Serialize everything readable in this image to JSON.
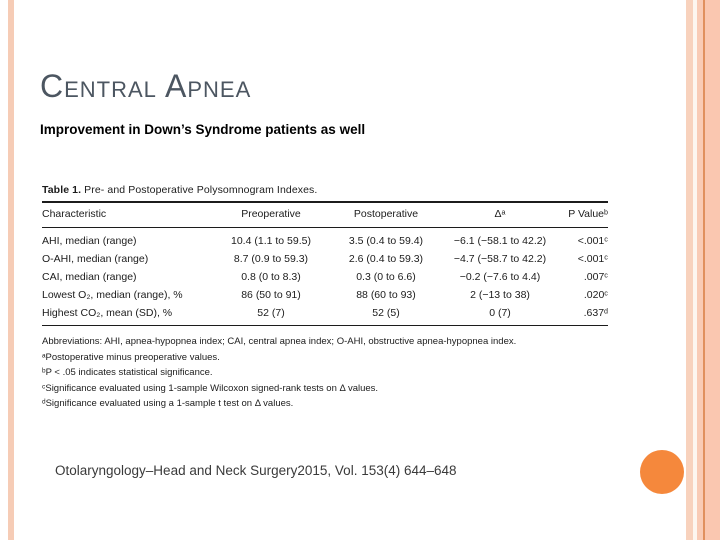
{
  "slide": {
    "title": "Central Apnea",
    "subtitle": "Improvement in Down’s Syndrome patients as well",
    "citation": "Otolaryngology–Head and Neck Surgery2015, Vol. 153(4) 644–648"
  },
  "table": {
    "caption_bold": "Table 1.",
    "caption_rest": " Pre- and Postoperative Polysomnogram Indexes.",
    "headers": [
      "Characteristic",
      "Preoperative",
      "Postoperative",
      "Δᵃ",
      "P Valueᵇ"
    ],
    "rows": [
      {
        "cells": [
          "AHI, median (range)",
          "10.4 (1.1 to 59.5)",
          "3.5 (0.4 to 59.4)",
          "−6.1 (−58.1 to 42.2)",
          "<.001ᶜ"
        ]
      },
      {
        "cells": [
          "O-AHI, median (range)",
          "8.7 (0.9 to 59.3)",
          "2.6 (0.4 to 59.3)",
          "−4.7 (−58.7 to 42.2)",
          "<.001ᶜ"
        ]
      },
      {
        "cells": [
          "CAI, median (range)",
          "0.8 (0 to 8.3)",
          "0.3 (0 to 6.6)",
          "−0.2 (−7.6 to 4.4)",
          ".007ᶜ"
        ]
      },
      {
        "cells": [
          "Lowest O₂, median (range), %",
          "86 (50 to 91)",
          "88 (60 to 93)",
          "2 (−13 to 38)",
          ".020ᶜ"
        ]
      },
      {
        "cells": [
          "Highest CO₂, mean (SD), %",
          "52 (7)",
          "52 (5)",
          "0 (7)",
          ".637ᵈ"
        ]
      }
    ],
    "footnotes": [
      "Abbreviations: AHI, apnea-hypopnea index; CAI, central apnea index; O-AHI, obstructive apnea-hypopnea index.",
      "ᵃPostoperative minus preoperative values.",
      "ᵇP < .05 indicates statistical significance.",
      "ᶜSignificance evaluated using 1-sample Wilcoxon signed-rank tests on Δ values.",
      "ᵈSignificance evaluated using a 1-sample t test on Δ values."
    ]
  },
  "colors": {
    "title_text": "#4c5661",
    "accent_stripe": "#f8d2bd",
    "accent_stripe_dark": "#e0905e",
    "circle": "#f5883c"
  }
}
